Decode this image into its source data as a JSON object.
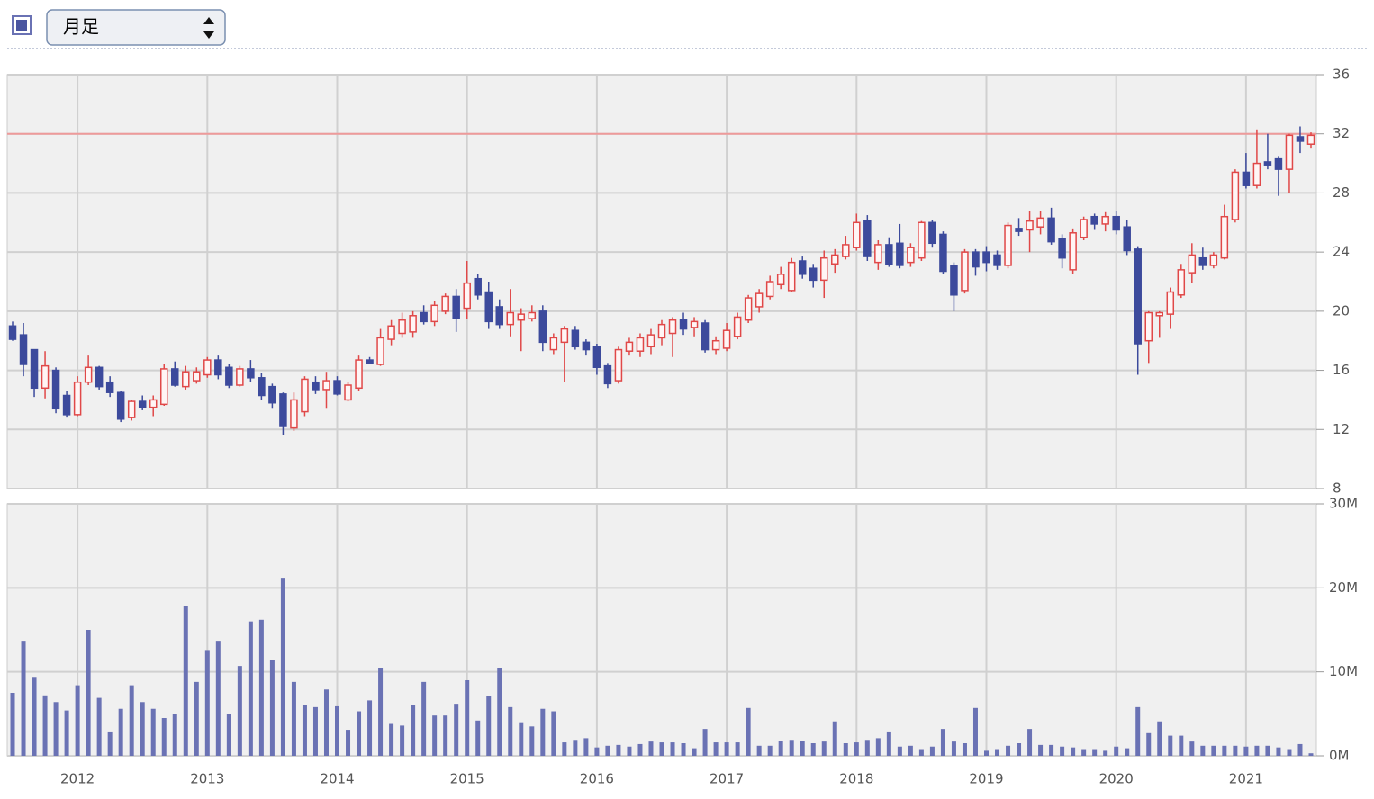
{
  "controls": {
    "period": "月足"
  },
  "chart_data": {
    "type": "candlestick",
    "categories": [
      null,
      null,
      null,
      null,
      null,
      null,
      "2012",
      null,
      null,
      null,
      null,
      null,
      null,
      null,
      null,
      null,
      null,
      null,
      "2013",
      null,
      null,
      null,
      null,
      null,
      null,
      null,
      null,
      null,
      null,
      null,
      "2014",
      null,
      null,
      null,
      null,
      null,
      null,
      null,
      null,
      null,
      null,
      null,
      "2015",
      null,
      null,
      null,
      null,
      null,
      null,
      null,
      null,
      null,
      null,
      null,
      "2016",
      null,
      null,
      null,
      null,
      null,
      null,
      null,
      null,
      null,
      null,
      null,
      "2017",
      null,
      null,
      null,
      null,
      null,
      null,
      null,
      null,
      null,
      null,
      null,
      "2018",
      null,
      null,
      null,
      null,
      null,
      null,
      null,
      null,
      null,
      null,
      null,
      "2019",
      null,
      null,
      null,
      null,
      null,
      null,
      null,
      null,
      null,
      null,
      null,
      "2020",
      null,
      null,
      null,
      null,
      null,
      null,
      null,
      null,
      null,
      null,
      null,
      "2021",
      null,
      null,
      null,
      null,
      null,
      null
    ],
    "open": [
      19.0,
      18.4,
      17.4,
      14.8,
      16.0,
      14.3,
      13.0,
      15.2,
      16.2,
      15.2,
      14.5,
      12.8,
      13.9,
      13.5,
      13.7,
      16.1,
      14.9,
      15.3,
      15.7,
      16.7,
      16.2,
      15.0,
      16.1,
      15.5,
      14.9,
      14.4,
      12.1,
      13.2,
      15.2,
      14.7,
      15.3,
      14.0,
      14.8,
      16.7,
      16.4,
      18.1,
      18.5,
      18.6,
      19.9,
      19.3,
      20.0,
      21.0,
      20.2,
      22.2,
      21.3,
      20.3,
      19.1,
      19.4,
      19.5,
      20.0,
      17.4,
      17.9,
      18.7,
      17.9,
      17.6,
      16.3,
      15.3,
      17.3,
      17.3,
      17.6,
      18.2,
      18.5,
      19.4,
      18.9,
      19.2,
      17.4,
      17.5,
      18.3,
      19.4,
      20.3,
      21.0,
      21.8,
      21.4,
      23.4,
      22.9,
      22.1,
      23.2,
      23.7,
      24.3,
      26.1,
      23.3,
      24.5,
      24.6,
      23.3,
      23.6,
      26.0,
      25.2,
      23.1,
      21.4,
      24.0,
      24.0,
      23.8,
      23.1,
      25.6,
      25.5,
      25.7,
      26.3,
      24.9,
      22.8,
      25.0,
      26.4,
      25.9,
      26.4,
      25.7,
      24.2,
      18.0,
      19.7,
      19.8,
      21.1,
      22.6,
      23.6,
      23.1,
      23.6,
      26.2,
      29.4,
      28.5,
      30.1,
      30.3,
      29.6,
      31.8,
      31.3
    ],
    "high": [
      19.3,
      19.2,
      17.4,
      17.3,
      16.2,
      14.6,
      15.6,
      17.0,
      16.3,
      15.6,
      14.6,
      14.0,
      14.3,
      14.3,
      16.4,
      16.6,
      16.3,
      16.2,
      16.9,
      17.0,
      16.4,
      16.3,
      16.7,
      15.8,
      15.1,
      14.5,
      14.5,
      15.6,
      15.6,
      15.9,
      15.6,
      15.2,
      17.0,
      16.9,
      18.8,
      19.4,
      19.9,
      20.0,
      20.4,
      20.7,
      21.2,
      21.5,
      23.4,
      22.5,
      22.0,
      20.8,
      21.5,
      20.2,
      20.4,
      20.4,
      18.5,
      19.0,
      19.0,
      18.1,
      17.8,
      16.5,
      17.6,
      18.2,
      18.5,
      18.8,
      19.4,
      19.6,
      19.9,
      19.6,
      19.4,
      18.3,
      19.2,
      19.9,
      21.1,
      21.5,
      22.4,
      23.0,
      23.6,
      23.7,
      23.2,
      24.1,
      24.2,
      25.1,
      26.6,
      26.5,
      24.8,
      25.0,
      25.9,
      24.6,
      26.1,
      26.2,
      25.4,
      23.3,
      24.2,
      24.2,
      24.4,
      24.1,
      26.0,
      26.3,
      26.8,
      26.8,
      27.0,
      25.2,
      25.6,
      26.4,
      26.6,
      26.7,
      26.8,
      26.2,
      24.4,
      20.0,
      20.0,
      21.6,
      23.2,
      24.6,
      24.3,
      24.0,
      27.2,
      29.6,
      30.7,
      32.3,
      32.0,
      30.5,
      32.0,
      32.5,
      32.1
    ],
    "low": [
      18.0,
      15.6,
      14.2,
      14.1,
      13.1,
      12.8,
      12.9,
      15.0,
      14.7,
      14.2,
      12.5,
      12.6,
      13.3,
      12.9,
      13.6,
      14.9,
      14.7,
      15.1,
      15.5,
      15.4,
      14.8,
      14.9,
      15.2,
      14.0,
      13.4,
      11.6,
      11.9,
      12.9,
      14.4,
      13.4,
      14.3,
      13.9,
      14.6,
      16.4,
      16.3,
      17.7,
      18.2,
      18.2,
      19.1,
      19.0,
      19.8,
      18.6,
      19.5,
      20.8,
      18.8,
      18.8,
      18.3,
      17.3,
      19.3,
      17.3,
      17.1,
      15.2,
      17.4,
      17.0,
      15.7,
      14.8,
      15.1,
      17.0,
      16.9,
      17.1,
      17.7,
      16.9,
      18.4,
      18.3,
      17.2,
      17.1,
      17.3,
      18.1,
      19.2,
      19.9,
      20.8,
      21.5,
      21.3,
      22.2,
      21.6,
      20.9,
      22.6,
      23.5,
      24.1,
      23.4,
      22.8,
      23.0,
      22.9,
      23.0,
      23.4,
      24.3,
      22.5,
      20.0,
      21.2,
      22.4,
      22.7,
      22.8,
      22.9,
      25.1,
      24.0,
      25.2,
      24.5,
      22.9,
      22.5,
      24.8,
      25.5,
      25.4,
      25.2,
      23.8,
      15.7,
      16.5,
      18.2,
      18.8,
      20.9,
      21.9,
      22.8,
      22.9,
      23.5,
      26.0,
      28.3,
      28.3,
      29.6,
      27.8,
      28.0,
      30.7,
      31.0
    ],
    "close": [
      18.1,
      16.4,
      14.8,
      16.3,
      13.4,
      13.0,
      15.2,
      16.2,
      14.9,
      14.5,
      12.7,
      13.9,
      13.5,
      14.0,
      16.1,
      15.0,
      15.9,
      15.9,
      16.7,
      15.7,
      15.0,
      16.1,
      15.5,
      14.3,
      13.8,
      12.2,
      14.0,
      15.4,
      14.7,
      15.3,
      14.4,
      15.0,
      16.7,
      16.5,
      18.2,
      19.0,
      19.4,
      19.7,
      19.3,
      20.4,
      21.0,
      19.5,
      21.9,
      21.1,
      19.3,
      19.1,
      19.9,
      19.8,
      19.9,
      17.9,
      18.2,
      18.8,
      17.6,
      17.4,
      16.2,
      15.1,
      17.4,
      17.9,
      18.2,
      18.4,
      19.1,
      19.4,
      18.8,
      19.3,
      17.4,
      18.0,
      18.7,
      19.6,
      20.9,
      21.2,
      22.0,
      22.5,
      23.3,
      22.5,
      22.1,
      23.6,
      23.8,
      24.5,
      26.0,
      23.7,
      24.5,
      23.2,
      23.1,
      24.3,
      26.0,
      24.6,
      22.7,
      21.1,
      24.0,
      23.0,
      23.3,
      23.1,
      25.8,
      25.4,
      26.1,
      26.3,
      24.7,
      23.6,
      25.3,
      26.2,
      25.9,
      26.4,
      25.5,
      24.1,
      17.8,
      19.9,
      19.9,
      21.3,
      22.8,
      23.8,
      23.1,
      23.8,
      26.4,
      29.4,
      28.5,
      30.0,
      29.9,
      29.6,
      31.9,
      31.5,
      31.9
    ],
    "volume": [
      7.5,
      13.7,
      9.4,
      7.2,
      6.4,
      5.4,
      8.4,
      15.0,
      6.9,
      2.9,
      5.6,
      8.4,
      6.4,
      5.6,
      4.5,
      5.0,
      17.8,
      8.8,
      12.6,
      13.7,
      5.0,
      10.7,
      16.0,
      16.2,
      11.4,
      21.2,
      8.8,
      6.1,
      5.8,
      7.9,
      5.9,
      3.1,
      5.3,
      6.6,
      10.5,
      3.8,
      3.6,
      6.0,
      8.8,
      4.8,
      4.8,
      6.2,
      9.0,
      4.2,
      7.1,
      10.5,
      5.8,
      4.0,
      3.5,
      5.6,
      5.3,
      1.6,
      1.9,
      2.1,
      1.0,
      1.2,
      1.3,
      1.1,
      1.4,
      1.7,
      1.6,
      1.6,
      1.5,
      0.9,
      3.2,
      1.6,
      1.6,
      1.6,
      5.7,
      1.2,
      1.2,
      1.8,
      1.9,
      1.8,
      1.5,
      1.7,
      4.1,
      1.5,
      1.6,
      1.9,
      2.1,
      2.9,
      1.1,
      1.2,
      0.8,
      1.1,
      3.2,
      1.7,
      1.5,
      5.7,
      0.6,
      0.8,
      1.2,
      1.5,
      3.2,
      1.3,
      1.3,
      1.1,
      1.0,
      0.8,
      0.8,
      0.6,
      1.1,
      0.9,
      5.8,
      2.7,
      4.1,
      2.4,
      2.4,
      1.7,
      1.2,
      1.2,
      1.2,
      1.2,
      1.1,
      1.2,
      1.2,
      1.0,
      0.8,
      1.4,
      0.3
    ],
    "up_color": "#e04848",
    "down_color": "#3c4a9c",
    "volume_color": "#6a72b4",
    "ylim": [
      8,
      36
    ],
    "yticks": [
      8,
      12,
      16,
      20,
      24,
      28,
      32,
      36
    ],
    "volume_ylim": [
      0,
      30
    ],
    "volume_yticks": [
      {
        "value": 0,
        "label": "0M"
      },
      {
        "value": 10,
        "label": "10M"
      },
      {
        "value": 20,
        "label": "20M"
      },
      {
        "value": 30,
        "label": "30M"
      }
    ],
    "reference_line": {
      "value": 32,
      "color": "#ee9a9a"
    },
    "grid": true
  }
}
